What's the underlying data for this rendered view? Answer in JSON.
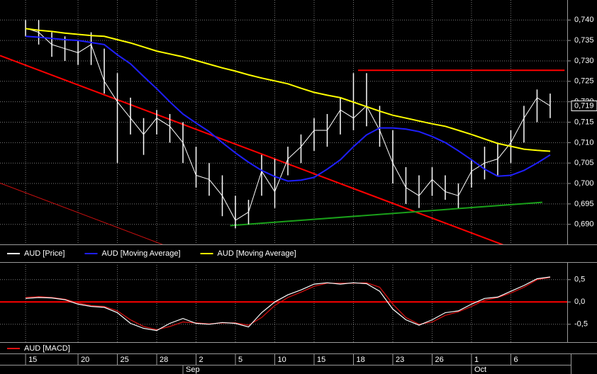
{
  "chart_data": [
    {
      "type": "hlc",
      "categories": [
        "15",
        null,
        null,
        null,
        "20",
        null,
        null,
        "25",
        null,
        null,
        "28",
        null,
        null,
        "2",
        null,
        null,
        "5",
        null,
        null,
        "10",
        null,
        null,
        "15",
        null,
        null,
        "18",
        null,
        null,
        "23",
        null,
        null,
        "26",
        null,
        null,
        "1",
        null,
        null,
        "6",
        null,
        null,
        null
      ],
      "month_labels": [
        {
          "label": "Sep",
          "index": 12
        },
        {
          "label": "Oct",
          "index": 34
        }
      ],
      "xlim": [
        -1.95,
        41.3
      ],
      "ylim": [
        0.6851,
        0.7449
      ],
      "yticks": [
        {
          "value": 0.74,
          "label": "0,740"
        },
        {
          "value": 0.735,
          "label": "0,735"
        },
        {
          "value": 0.73,
          "label": "0,730"
        },
        {
          "value": 0.725,
          "label": "0,725"
        },
        {
          "value": 0.72,
          "label": "0,720"
        },
        {
          "value": 0.715,
          "label": "0,715"
        },
        {
          "value": 0.71,
          "label": "0,710"
        },
        {
          "value": 0.705,
          "label": "0,705"
        },
        {
          "value": 0.7,
          "label": "0,700"
        },
        {
          "value": 0.695,
          "label": "0,695"
        },
        {
          "value": 0.69,
          "label": "0,690"
        }
      ],
      "grid": true,
      "series": [
        {
          "name": "AUD [Price]",
          "color": "#ffffff",
          "values": [
            0.738,
            0.737,
            0.734,
            0.733,
            0.732,
            0.734,
            0.725,
            0.72,
            0.716,
            0.712,
            0.716,
            0.714,
            0.71,
            0.702,
            0.701,
            0.697,
            0.691,
            0.693,
            0.703,
            0.698,
            0.706,
            0.709,
            0.713,
            0.713,
            0.718,
            0.716,
            0.719,
            0.713,
            0.705,
            0.699,
            0.697,
            0.701,
            0.698,
            0.697,
            0.703,
            0.705,
            0.706,
            0.71,
            0.716,
            0.721,
            0.719
          ],
          "high": [
            0.74,
            0.74,
            0.737,
            0.736,
            0.735,
            0.737,
            0.733,
            0.727,
            0.721,
            0.716,
            0.718,
            0.717,
            0.715,
            0.709,
            0.705,
            0.702,
            0.697,
            0.696,
            0.707,
            0.706,
            0.709,
            0.712,
            0.716,
            0.717,
            0.721,
            0.727,
            0.727,
            0.719,
            0.713,
            0.704,
            0.702,
            0.704,
            0.702,
            0.7,
            0.706,
            0.709,
            0.71,
            0.713,
            0.719,
            0.723,
            0.722
          ],
          "low": [
            0.736,
            0.734,
            0.731,
            0.73,
            0.729,
            0.729,
            0.722,
            0.705,
            0.712,
            0.707,
            0.712,
            0.71,
            0.705,
            0.699,
            0.697,
            0.692,
            0.689,
            0.69,
            0.697,
            0.694,
            0.702,
            0.705,
            0.708,
            0.709,
            0.712,
            0.713,
            0.714,
            0.709,
            0.7,
            0.695,
            0.694,
            0.697,
            0.696,
            0.694,
            0.699,
            0.701,
            0.702,
            0.705,
            0.71,
            0.715,
            0.716
          ],
          "last_value_label": "0,719"
        },
        {
          "name": "AUD [Moving Average]",
          "color": "#1f1fff",
          "values": [
            0.736,
            0.7358,
            0.7355,
            0.7352,
            0.735,
            0.7345,
            0.734,
            0.7315,
            0.7293,
            0.7262,
            0.7232,
            0.72,
            0.717,
            0.7148,
            0.7127,
            0.71,
            0.7075,
            0.7052,
            0.7032,
            0.7017,
            0.7006,
            0.7008,
            0.7015,
            0.7035,
            0.7058,
            0.709,
            0.7119,
            0.7136,
            0.7136,
            0.7133,
            0.7127,
            0.7115,
            0.71,
            0.708,
            0.7058,
            0.7035,
            0.7018,
            0.702,
            0.7032,
            0.705,
            0.707
          ]
        },
        {
          "name": "AUD [Moving Average]",
          "color": "#ffff00",
          "values": [
            0.7379,
            0.7375,
            0.7372,
            0.7368,
            0.7365,
            0.7362,
            0.736,
            0.7352,
            0.7344,
            0.7334,
            0.7324,
            0.7317,
            0.731,
            0.7301,
            0.7292,
            0.7283,
            0.7275,
            0.7266,
            0.7258,
            0.7251,
            0.7244,
            0.7233,
            0.7223,
            0.7216,
            0.721,
            0.7199,
            0.7188,
            0.7177,
            0.7167,
            0.716,
            0.7153,
            0.7146,
            0.714,
            0.713,
            0.712,
            0.7109,
            0.7098,
            0.7091,
            0.7084,
            0.7081,
            0.7079
          ]
        }
      ],
      "trendlines": [
        {
          "color": "#ff0000",
          "width": 2,
          "x": [
            -1.95,
            36.4
          ],
          "y": [
            0.7313,
            0.685
          ]
        },
        {
          "color": "#ff0000",
          "width": 2,
          "x": [
            25.35,
            41.1
          ],
          "y": [
            0.7277,
            0.7277
          ]
        },
        {
          "color": "#1aa01a",
          "width": 2,
          "x": [
            15.6,
            39.4
          ],
          "y": [
            0.6897,
            0.6954
          ]
        },
        {
          "color": "#d01010",
          "width": 1,
          "x": [
            -1.95,
            10.5
          ],
          "y": [
            0.7001,
            0.685
          ]
        }
      ]
    },
    {
      "type": "line",
      "ylim": [
        -0.9,
        0.83
      ],
      "yticks": [
        {
          "value": 0.5,
          "label": "0,5"
        },
        {
          "value": 0,
          "label": "0,0"
        },
        {
          "value": -0.5,
          "label": "-0,5"
        }
      ],
      "grid": true,
      "zero_line_color": "#ff0000",
      "series": [
        {
          "name": "AUD [MACD]",
          "color": "#e01010",
          "values": [
            0.1,
            0.12,
            0.1,
            0.06,
            -0.02,
            -0.08,
            -0.1,
            -0.2,
            -0.4,
            -0.55,
            -0.62,
            -0.55,
            -0.45,
            -0.47,
            -0.49,
            -0.47,
            -0.47,
            -0.52,
            -0.35,
            -0.08,
            0.1,
            0.22,
            0.35,
            0.42,
            0.42,
            0.42,
            0.43,
            0.33,
            -0.05,
            -0.35,
            -0.5,
            -0.45,
            -0.3,
            -0.22,
            -0.1,
            0.04,
            0.1,
            0.2,
            0.33,
            0.5,
            0.55
          ]
        },
        {
          "color": "#ffffff",
          "values": [
            0.08,
            0.1,
            0.09,
            0.05,
            -0.05,
            -0.1,
            -0.12,
            -0.24,
            -0.48,
            -0.59,
            -0.64,
            -0.48,
            -0.37,
            -0.48,
            -0.5,
            -0.46,
            -0.48,
            -0.56,
            -0.24,
            0,
            0.16,
            0.27,
            0.4,
            0.43,
            0.4,
            0.43,
            0.41,
            0.24,
            -0.16,
            -0.4,
            -0.52,
            -0.4,
            -0.24,
            -0.2,
            -0.05,
            0.08,
            0.11,
            0.24,
            0.37,
            0.52,
            0.56
          ]
        }
      ]
    }
  ]
}
